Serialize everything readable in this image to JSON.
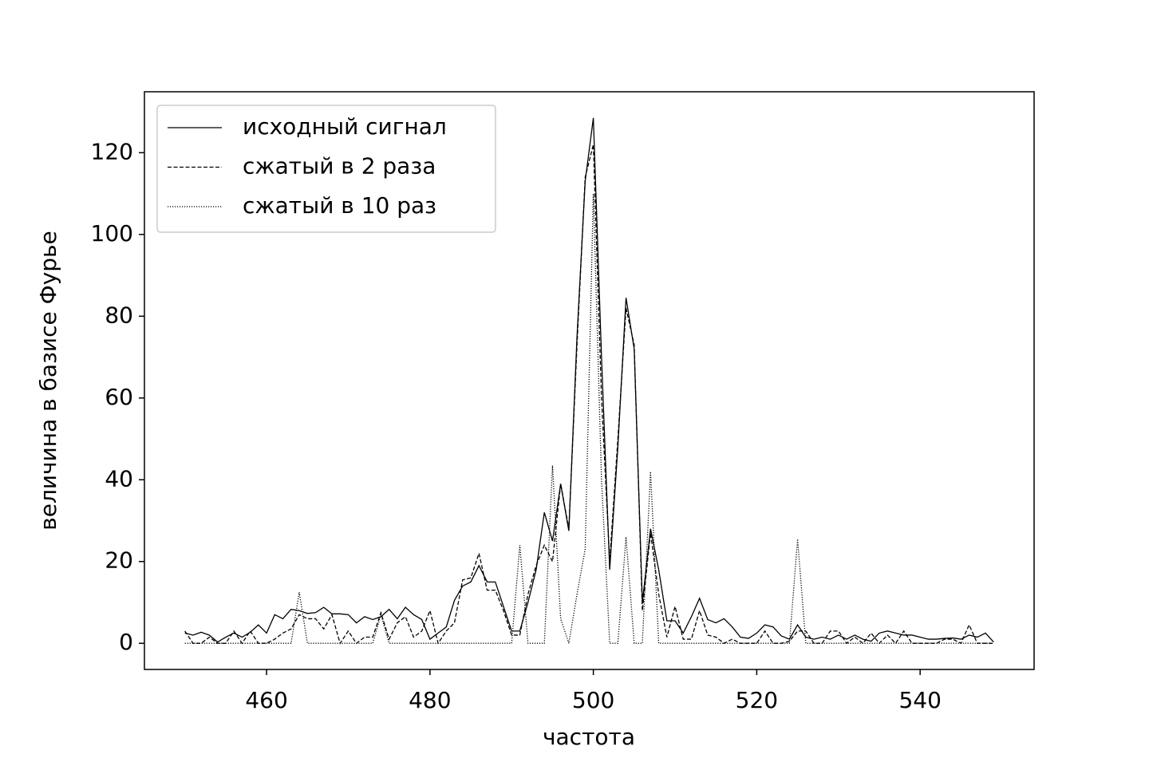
{
  "chart_data": {
    "type": "line",
    "xlabel": "частота",
    "ylabel": "величина в базисе Фурье",
    "x": [
      450,
      451,
      452,
      453,
      454,
      455,
      456,
      457,
      458,
      459,
      460,
      461,
      462,
      463,
      464,
      465,
      466,
      467,
      468,
      469,
      470,
      471,
      472,
      473,
      474,
      475,
      476,
      477,
      478,
      479,
      480,
      481,
      482,
      483,
      484,
      485,
      486,
      487,
      488,
      489,
      490,
      491,
      492,
      493,
      494,
      495,
      496,
      497,
      498,
      499,
      500,
      501,
      502,
      503,
      504,
      505,
      506,
      507,
      508,
      509,
      510,
      511,
      512,
      513,
      514,
      515,
      516,
      517,
      518,
      519,
      520,
      521,
      522,
      523,
      524,
      525,
      526,
      527,
      528,
      529,
      530,
      531,
      532,
      533,
      534,
      535,
      536,
      537,
      538,
      539,
      540,
      541,
      542,
      543,
      544,
      545,
      546,
      547,
      548,
      549
    ],
    "series": [
      {
        "name": "исходный сигнал",
        "color": "#000000",
        "dash": "solid",
        "values": [
          2.5,
          2,
          2.7,
          2,
          0.3,
          1.5,
          2.5,
          1.5,
          2.7,
          4.5,
          2.5,
          7,
          6,
          8.3,
          8,
          7.3,
          7.5,
          8.8,
          7.2,
          7.2,
          7,
          5,
          6.5,
          5.8,
          6.5,
          8.3,
          6,
          8.8,
          7,
          5.8,
          1,
          2.5,
          4,
          10.5,
          14,
          15,
          19,
          15,
          15,
          9,
          3,
          3,
          10,
          18,
          32,
          25,
          39,
          27.5,
          75,
          113,
          128.5,
          70,
          18,
          48,
          84.5,
          72,
          10,
          28,
          18,
          5.5,
          5.5,
          2.5,
          6.5,
          11,
          5.8,
          5,
          6,
          4,
          1.5,
          1.2,
          2.5,
          4.5,
          4,
          1.8,
          1,
          4.5,
          1.5,
          1,
          1.5,
          1,
          2,
          1,
          2,
          1,
          0.5,
          2.5,
          3,
          2.5,
          2,
          2,
          1.5,
          1,
          1,
          1.2,
          1.3,
          1,
          2,
          1.5,
          2.5,
          0.3
        ]
      },
      {
        "name": "сжатый в 2 раза",
        "color": "#000000",
        "dash": "dashed",
        "values": [
          3,
          0,
          0,
          1.5,
          0,
          0,
          3,
          0,
          3,
          0,
          0,
          1,
          2.5,
          3.5,
          7,
          6,
          6,
          3.5,
          7,
          0,
          3,
          0,
          1.5,
          1.5,
          7.5,
          1,
          5,
          6.5,
          1.5,
          3,
          8,
          0,
          3,
          5,
          15.5,
          16,
          22,
          13,
          13,
          8,
          2,
          2,
          12,
          19,
          24,
          20,
          39,
          28,
          73,
          114,
          122,
          60,
          20,
          50,
          82,
          73,
          8,
          27,
          12,
          1.5,
          9,
          1,
          1,
          8,
          2,
          1.5,
          0,
          1,
          0,
          0,
          0,
          3,
          0,
          0,
          0.5,
          3,
          3,
          0,
          0,
          3,
          3,
          0,
          1.5,
          0,
          2.5,
          0,
          2,
          0,
          3,
          0,
          0,
          0,
          0,
          1,
          1,
          0,
          4.5,
          0,
          0,
          0
        ]
      },
      {
        "name": "сжатый в 10 раз",
        "color": "#000000",
        "dash": "dotted",
        "values": [
          0,
          0,
          0,
          0,
          0,
          0,
          0,
          0,
          0,
          0,
          0,
          0,
          0,
          0,
          12.5,
          0,
          0,
          0,
          0,
          0,
          0,
          0,
          0,
          0,
          7,
          0,
          0,
          0,
          0,
          0,
          0,
          0,
          0,
          0,
          0,
          0,
          0,
          0,
          0,
          0,
          0,
          24,
          0,
          0,
          0,
          43.5,
          6,
          0,
          12,
          23,
          110,
          40,
          0,
          0,
          26,
          0,
          0,
          42,
          0,
          0,
          0,
          0,
          0,
          0,
          0,
          0,
          0,
          0,
          0,
          0,
          0,
          0,
          0,
          0,
          0,
          25.5,
          0,
          0,
          0,
          0,
          0,
          0,
          0,
          0,
          0,
          0,
          0,
          0,
          0,
          0,
          0,
          0,
          0,
          0,
          0,
          0,
          0,
          0,
          0,
          0
        ]
      }
    ],
    "xlim": [
      445.05,
      553.95
    ],
    "ylim": [
      -6.4,
      134.9
    ],
    "xticks": [
      460,
      480,
      500,
      520,
      540
    ],
    "yticks": [
      0,
      20,
      40,
      60,
      80,
      100,
      120
    ],
    "legend": "upper left"
  }
}
